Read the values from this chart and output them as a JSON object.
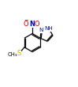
{
  "bg_color": "#ffffff",
  "bond_color": "#000000",
  "atom_colors": {
    "N": "#0000cc",
    "O": "#cc0000",
    "S": "#ccaa00",
    "C": "#000000"
  },
  "figsize": [
    0.99,
    1.1
  ],
  "dpi": 100,
  "lw": 0.9,
  "font_size": 6.0
}
